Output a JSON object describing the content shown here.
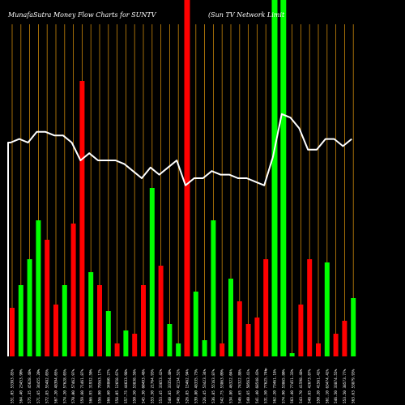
{
  "chart_data": {
    "type": "bar",
    "title": "MunafaSutra  Money Flow  Charts for SUNTV",
    "subtitle": "(Sun  TV Network Limit",
    "axis_marker": "0",
    "line_series_label": "",
    "colors": {
      "up": "#00ff00",
      "down": "#ff0000",
      "grid": "#c8860a",
      "line": "#ffffff",
      "background": "#000000",
      "spike": "#ff0000"
    },
    "bars": [
      {
        "label": "551.05 53383.85%",
        "value": 15,
        "color": "down"
      },
      {
        "label": "564.40 23453.90%",
        "value": 22,
        "color": "up"
      },
      {
        "label": "575.35 45628.48%",
        "value": 30,
        "color": "up"
      },
      {
        "label": "571.65 34455.20%",
        "value": 42,
        "color": "up"
      },
      {
        "label": "572.85 55482.03%",
        "value": 36,
        "color": "down"
      },
      {
        "label": "567.20 48394.65%",
        "value": 16,
        "color": "down"
      },
      {
        "label": "574.20 57628.03%",
        "value": 22,
        "color": "up"
      },
      {
        "label": "570.00 57462.97%",
        "value": 41,
        "color": "down"
      },
      {
        "label": "559.60 71461.87%",
        "value": 85,
        "color": "down"
      },
      {
        "label": "566.95 31932.50%",
        "value": 26,
        "color": "up"
      },
      {
        "label": "556.90 79563.17%",
        "value": 22,
        "color": "down"
      },
      {
        "label": "566.60 34860.27%",
        "value": 14,
        "color": "up"
      },
      {
        "label": "558.05 12658.67%",
        "value": 4,
        "color": "down"
      },
      {
        "label": "557.75 44633.98%",
        "value": 8,
        "color": "up"
      },
      {
        "label": "550.50 53838.58%",
        "value": 7,
        "color": "down"
      },
      {
        "label": "545.30 60493.48%",
        "value": 22,
        "color": "down"
      },
      {
        "label": "553.50 21764.93%",
        "value": 52,
        "color": "up"
      },
      {
        "label": "553.45 33653.42%",
        "value": 28,
        "color": "down"
      },
      {
        "label": "540.85 33354.40%",
        "value": 10,
        "color": "up"
      },
      {
        "label": "546.70 42134.52%",
        "value": 4,
        "color": "up"
      },
      {
        "label": "526.85 15462.94%",
        "value": 110,
        "color": "down"
      },
      {
        "label": "539.80 48335.73%",
        "value": 20,
        "color": "up"
      },
      {
        "label": "526.45 53423.34%",
        "value": 5,
        "color": "up"
      },
      {
        "label": "536.85 55163.87%",
        "value": 42,
        "color": "up"
      },
      {
        "label": "542.75 53863.09%",
        "value": 4,
        "color": "down"
      },
      {
        "label": "534.80 46322.04%",
        "value": 24,
        "color": "up"
      },
      {
        "label": "546.65 74322.88%",
        "value": 17,
        "color": "down"
      },
      {
        "label": "540.65 50563.41%",
        "value": 10,
        "color": "down"
      },
      {
        "label": "541.40 68548.43%",
        "value": 12,
        "color": "down"
      },
      {
        "label": "531.50 77625.74%",
        "value": 30,
        "color": "down"
      },
      {
        "label": "562.20 73461.18%",
        "value": 110,
        "color": "up"
      },
      {
        "label": "574.90 53865.80%",
        "value": 110,
        "color": "up"
      },
      {
        "label": "563.40 77451.33%",
        "value": 1,
        "color": "up"
      },
      {
        "label": "543.70 41598.48%",
        "value": 16,
        "color": "down"
      },
      {
        "label": "548.85 42673.87%",
        "value": 30,
        "color": "down"
      },
      {
        "label": "550.20 41561.42%",
        "value": 4,
        "color": "down"
      },
      {
        "label": "561.10 63474.42%",
        "value": 29,
        "color": "up"
      },
      {
        "label": "546.50 33874.55%",
        "value": 7,
        "color": "down"
      },
      {
        "label": "553.50 38573.77%",
        "value": 11,
        "color": "down"
      },
      {
        "label": "563.63 53879.93%",
        "value": 18,
        "color": "up"
      }
    ],
    "line": [
      60,
      61,
      60,
      63,
      63,
      62,
      62,
      60,
      55,
      57,
      55,
      55,
      55,
      54,
      52,
      50,
      53,
      51,
      53,
      55,
      48,
      50,
      50,
      52,
      51,
      51,
      50,
      50,
      49,
      48,
      56,
      68,
      67,
      64,
      58,
      58,
      61,
      61,
      59,
      61
    ],
    "ylim": [
      0,
      110
    ],
    "line_ylim": [
      0,
      100
    ]
  }
}
